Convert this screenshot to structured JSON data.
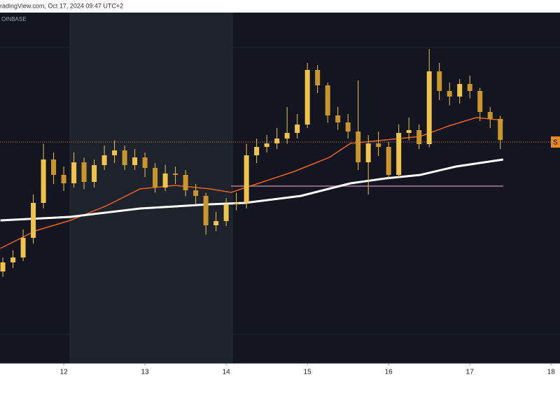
{
  "header": {
    "text": "radingView.com, Oct 17, 2024 09:47 UTC+2"
  },
  "chart_data": {
    "type": "candlestick",
    "exchange_label": "OINBASE",
    "xlim": [
      11.215,
      18.11
    ],
    "ylim": [
      0,
      100
    ],
    "xticks": [
      12,
      13,
      14,
      15,
      16,
      17,
      18
    ],
    "candle_color": "#f0c34a",
    "x": [
      11.25,
      11.375,
      11.5,
      11.625,
      11.75,
      11.875,
      12,
      12.125,
      12.25,
      12.375,
      12.5,
      12.625,
      12.75,
      12.875,
      13,
      13.125,
      13.25,
      13.375,
      13.5,
      13.625,
      13.75,
      13.875,
      14,
      14.125,
      14.25,
      14.375,
      14.5,
      14.625,
      14.75,
      14.875,
      15,
      15.125,
      15.25,
      15.375,
      15.5,
      15.625,
      15.75,
      15.875,
      16,
      16.125,
      16.25,
      16.375,
      16.5,
      16.625,
      16.75,
      16.875,
      17,
      17.125,
      17.25,
      17.375
    ],
    "open": [
      26,
      28.6,
      30,
      35.6,
      45.6,
      58,
      53.6,
      51.2,
      57.2,
      51.6,
      56.4,
      59.2,
      60.6,
      56.4,
      58.6,
      55.6,
      50,
      54,
      53.6,
      49.2,
      47.6,
      39.2,
      40.4,
      45.2,
      45.6,
      59.2,
      61.6,
      62.6,
      64,
      65.6,
      68,
      83.6,
      79.2,
      70.6,
      68.6,
      66,
      57.2,
      62.6,
      61.6,
      53.6,
      65.6,
      66.4,
      62.4,
      83.2,
      77.6,
      76,
      79.6,
      77.6,
      71.6,
      69.6
    ],
    "high": [
      30,
      32,
      38,
      48,
      62.5,
      60,
      56,
      60,
      58.5,
      58,
      62,
      63.5,
      62,
      61,
      60,
      57,
      56.5,
      56,
      55,
      51,
      48.5,
      43,
      47,
      48.5,
      62.5,
      64,
      65,
      67,
      73,
      71,
      85.6,
      85,
      80,
      73,
      71,
      80.6,
      65,
      66,
      63,
      68,
      70,
      68,
      89.6,
      85.6,
      80,
      81,
      82,
      78.5,
      73,
      70.5
    ],
    "low": [
      24.5,
      27,
      29,
      34,
      44,
      51,
      49,
      50,
      49.5,
      50,
      55,
      57,
      55,
      55,
      53,
      48.5,
      49,
      51,
      47.5,
      45,
      36.5,
      37.5,
      39,
      43.5,
      44,
      57,
      60,
      61,
      62.5,
      64,
      67,
      77,
      68.5,
      66.5,
      64,
      55,
      48,
      59,
      52.5,
      53,
      63.5,
      61,
      61.5,
      75,
      73.5,
      74,
      75.5,
      69,
      67,
      61
    ],
    "close": [
      28.6,
      30,
      35.6,
      45.6,
      58,
      53.6,
      51.2,
      57.2,
      51.6,
      56.4,
      59.2,
      60.6,
      56.4,
      58.6,
      55.6,
      50,
      54,
      53.6,
      49.2,
      47.6,
      39.2,
      40.4,
      45.2,
      45.6,
      59.2,
      61.6,
      62.6,
      64,
      65.6,
      68,
      83.6,
      79.2,
      70.6,
      68.6,
      66,
      57.2,
      62.6,
      61.6,
      53.6,
      65.6,
      66.4,
      62.4,
      83.2,
      77.6,
      76,
      79.6,
      77.6,
      71.6,
      69.6,
      63.6
    ],
    "overlays": [
      {
        "color": "#e8631c",
        "x": [
          11.22,
          11.65,
          12.08,
          12.51,
          12.94,
          13.37,
          13.8,
          14.06,
          14.32,
          14.84,
          15.27,
          15.53,
          15.96,
          16.39,
          16.74,
          17.08,
          17.41
        ],
        "values": [
          32.6,
          37.6,
          40.6,
          44.6,
          49.6,
          50.6,
          49.6,
          48.6,
          50.6,
          54.6,
          58.6,
          62.6,
          63.6,
          64.6,
          67.6,
          70,
          69.2
        ]
      },
      {
        "color": "#ffffff",
        "x": [
          11.22,
          12.08,
          12.94,
          13.8,
          14.23,
          14.92,
          15.53,
          15.96,
          16.39,
          16.83,
          17.41
        ],
        "values": [
          40.6,
          41.6,
          44,
          45.2,
          45.6,
          47.6,
          51.2,
          52.6,
          53.6,
          56,
          58
        ]
      }
    ],
    "levels": [
      {
        "value": 63,
        "color": "#e08a2c",
        "label": "S"
      },
      {
        "value": 50.4,
        "color": "#8e5f78",
        "x": [
          14.06,
          17.41
        ]
      }
    ]
  }
}
